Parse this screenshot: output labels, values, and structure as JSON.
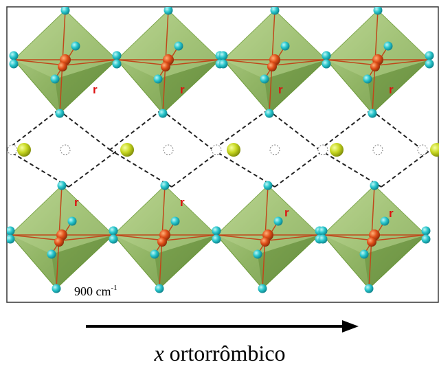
{
  "bond_labels": [
    "r",
    "r",
    "r",
    "r",
    "r",
    "r",
    "r",
    "r"
  ],
  "annotation": {
    "text": "900 cm",
    "superscript": "-1"
  },
  "caption": {
    "variable": "x",
    "text": "ortorrômbico"
  }
}
